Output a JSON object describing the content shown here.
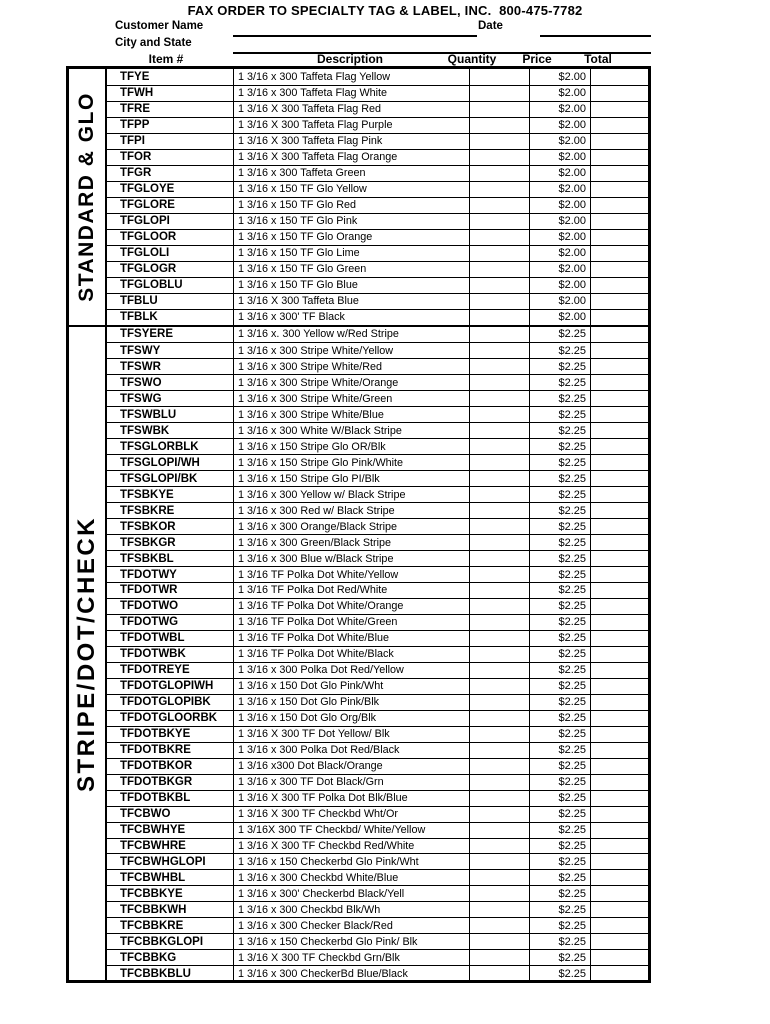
{
  "colors": {
    "ink": "#000000",
    "paper": "#ffffff"
  },
  "header": {
    "title": "FAX ORDER TO SPECIALTY TAG & LABEL, INC.  800-475-7782",
    "customer_name_label": "Customer Name",
    "city_state_label": "City and State",
    "date_label": "Date",
    "customer_name_value": "",
    "city_state_value": "",
    "date_value": "",
    "columns": {
      "item": "Item #",
      "description": "Description",
      "quantity": "Quantity",
      "price": "Price",
      "total": "Total"
    }
  },
  "sections": [
    {
      "label": "STANDARD & GLO",
      "rows": [
        {
          "item": "TFYE",
          "desc": "1 3/16 x 300 Taffeta Flag Yellow",
          "qty": "",
          "price": "$2.00",
          "total": ""
        },
        {
          "item": "TFWH",
          "desc": "1 3/16 x 300 Taffeta Flag White",
          "qty": "",
          "price": "$2.00",
          "total": ""
        },
        {
          "item": "TFRE",
          "desc": "1 3/16 X 300 Taffeta Flag Red",
          "qty": "",
          "price": "$2.00",
          "total": ""
        },
        {
          "item": "TFPP",
          "desc": "1 3/16 X 300 Taffeta Flag Purple",
          "qty": "",
          "price": "$2.00",
          "total": ""
        },
        {
          "item": "TFPI",
          "desc": "1 3/16 X 300 Taffeta Flag Pink",
          "qty": "",
          "price": "$2.00",
          "total": ""
        },
        {
          "item": "TFOR",
          "desc": "1 3/16 X 300 Taffeta Flag Orange",
          "qty": "",
          "price": "$2.00",
          "total": ""
        },
        {
          "item": "TFGR",
          "desc": "1 3/16 x 300 Taffeta Green",
          "qty": "",
          "price": "$2.00",
          "total": ""
        },
        {
          "item": "TFGLOYE",
          "desc": "1 3/16 x 150 TF Glo Yellow",
          "qty": "",
          "price": "$2.00",
          "total": ""
        },
        {
          "item": "TFGLORE",
          "desc": "1 3/16 x 150 TF Glo Red",
          "qty": "",
          "price": "$2.00",
          "total": ""
        },
        {
          "item": "TFGLOPI",
          "desc": "1 3/16 x 150 TF Glo Pink",
          "qty": "",
          "price": "$2.00",
          "total": ""
        },
        {
          "item": "TFGLOOR",
          "desc": "1 3/16 x 150 TF Glo Orange",
          "qty": "",
          "price": "$2.00",
          "total": ""
        },
        {
          "item": "TFGLOLI",
          "desc": "1 3/16 x 150 TF Glo Lime",
          "qty": "",
          "price": "$2.00",
          "total": ""
        },
        {
          "item": "TFGLOGR",
          "desc": "1 3/16 x 150 TF Glo Green",
          "qty": "",
          "price": "$2.00",
          "total": ""
        },
        {
          "item": "TFGLOBLU",
          "desc": "1 3/16 x 150 TF Glo Blue",
          "qty": "",
          "price": "$2.00",
          "total": ""
        },
        {
          "item": "TFBLU",
          "desc": "1 3/16 X 300 Taffeta Blue",
          "qty": "",
          "price": "$2.00",
          "total": ""
        },
        {
          "item": "TFBLK",
          "desc": "1 3/16 x 300' TF Black",
          "qty": "",
          "price": "$2.00",
          "total": ""
        }
      ]
    },
    {
      "label": "STRIPE/DOT/CHECK",
      "rows": [
        {
          "item": "TFSYERE",
          "desc": "1 3/16 x. 300 Yellow w/Red Stripe",
          "qty": "",
          "price": "$2.25",
          "total": ""
        },
        {
          "item": "TFSWY",
          "desc": "1 3/16 x 300 Stripe White/Yellow",
          "qty": "",
          "price": "$2.25",
          "total": ""
        },
        {
          "item": "TFSWR",
          "desc": "1 3/16 x 300 Stripe White/Red",
          "qty": "",
          "price": "$2.25",
          "total": ""
        },
        {
          "item": "TFSWO",
          "desc": "1 3/16 x 300 Stripe White/Orange",
          "qty": "",
          "price": "$2.25",
          "total": ""
        },
        {
          "item": "TFSWG",
          "desc": "1 3/16 x 300 Stripe White/Green",
          "qty": "",
          "price": "$2.25",
          "total": ""
        },
        {
          "item": "TFSWBLU",
          "desc": "1 3/16 x 300 Stripe White/Blue",
          "qty": "",
          "price": "$2.25",
          "total": ""
        },
        {
          "item": "TFSWBK",
          "desc": "1 3/16 x 300 White W/Black Stripe",
          "qty": "",
          "price": "$2.25",
          "total": ""
        },
        {
          "item": "TFSGLORBLK",
          "desc": "1 3/16 x 150 Stripe Glo OR/Blk",
          "qty": "",
          "price": "$2.25",
          "total": ""
        },
        {
          "item": "TFSGLOPI/WH",
          "desc": "1 3/16 x 150 Stripe Glo Pink/White",
          "qty": "",
          "price": "$2.25",
          "total": ""
        },
        {
          "item": "TFSGLOPI/BK",
          "desc": "1 3/16 x 150 Stripe Glo PI/Blk",
          "qty": "",
          "price": "$2.25",
          "total": ""
        },
        {
          "item": "TFSBKYE",
          "desc": "1 3/16 x 300 Yellow w/ Black Stripe",
          "qty": "",
          "price": "$2.25",
          "total": ""
        },
        {
          "item": "TFSBKRE",
          "desc": "1 3/16 x 300 Red w/ Black Stripe",
          "qty": "",
          "price": "$2.25",
          "total": ""
        },
        {
          "item": "TFSBKOR",
          "desc": "1 3/16 x 300 Orange/Black Stripe",
          "qty": "",
          "price": "$2.25",
          "total": ""
        },
        {
          "item": "TFSBKGR",
          "desc": "1 3/16 x 300 Green/Black Stripe",
          "qty": "",
          "price": "$2.25",
          "total": ""
        },
        {
          "item": "TFSBKBL",
          "desc": "1 3/16 x 300 Blue w/Black Stripe",
          "qty": "",
          "price": "$2.25",
          "total": ""
        },
        {
          "item": "TFDOTWY",
          "desc": "1 3/16 TF Polka Dot White/Yellow",
          "qty": "",
          "price": "$2.25",
          "total": ""
        },
        {
          "item": "TFDOTWR",
          "desc": "1 3/16 TF Polka Dot Red/White",
          "qty": "",
          "price": "$2.25",
          "total": ""
        },
        {
          "item": "TFDOTWO",
          "desc": "1 3/16 TF Polka Dot White/Orange",
          "qty": "",
          "price": "$2.25",
          "total": ""
        },
        {
          "item": "TFDOTWG",
          "desc": "1 3/16 TF Polka Dot White/Green",
          "qty": "",
          "price": "$2.25",
          "total": ""
        },
        {
          "item": "TFDOTWBL",
          "desc": "1 3/16 TF Polka Dot White/Blue",
          "qty": "",
          "price": "$2.25",
          "total": ""
        },
        {
          "item": "TFDOTWBK",
          "desc": "1 3/16 TF Polka Dot White/Black",
          "qty": "",
          "price": "$2.25",
          "total": ""
        },
        {
          "item": "TFDOTREYE",
          "desc": "1 3/16 x 300 Polka Dot Red/Yellow",
          "qty": "",
          "price": "$2.25",
          "total": ""
        },
        {
          "item": "TFDOTGLOPIWH",
          "desc": "1 3/16 x 150 Dot Glo Pink/Wht",
          "qty": "",
          "price": "$2.25",
          "total": ""
        },
        {
          "item": "TFDOTGLOPIBK",
          "desc": "1 3/16 x 150 Dot Glo Pink/Blk",
          "qty": "",
          "price": "$2.25",
          "total": ""
        },
        {
          "item": "TFDOTGLOORBK",
          "desc": "1 3/16 x 150 Dot Glo Org/Blk",
          "qty": "",
          "price": "$2.25",
          "total": ""
        },
        {
          "item": "TFDOTBKYE",
          "desc": "1 3/16 X 300 TF Dot Yellow/ Blk",
          "qty": "",
          "price": "$2.25",
          "total": ""
        },
        {
          "item": "TFDOTBKRE",
          "desc": "1 3/16 x 300 Polka Dot Red/Black",
          "qty": "",
          "price": "$2.25",
          "total": ""
        },
        {
          "item": "TFDOTBKOR",
          "desc": "1 3/16 x300 Dot Black/Orange",
          "qty": "",
          "price": "$2.25",
          "total": ""
        },
        {
          "item": "TFDOTBKGR",
          "desc": "1 3/16 x 300 TF Dot Black/Grn",
          "qty": "",
          "price": "$2.25",
          "total": ""
        },
        {
          "item": "TFDOTBKBL",
          "desc": "1 3/16 X 300 TF Polka Dot Blk/Blue",
          "qty": "",
          "price": "$2.25",
          "total": ""
        },
        {
          "item": "TFCBWO",
          "desc": "1 3/16 X 300 TF Checkbd Wht/Or",
          "qty": "",
          "price": "$2.25",
          "total": ""
        },
        {
          "item": "TFCBWHYE",
          "desc": "1 3/16X 300 TF Checkbd/ White/Yellow",
          "qty": "",
          "price": "$2.25",
          "total": ""
        },
        {
          "item": "TFCBWHRE",
          "desc": "1 3/16 X 300 TF Checkbd Red/White",
          "qty": "",
          "price": "$2.25",
          "total": ""
        },
        {
          "item": "TFCBWHGLOPI",
          "desc": "1 3/16 x 150 Checkerbd Glo Pink/Wht",
          "qty": "",
          "price": "$2.25",
          "total": ""
        },
        {
          "item": "TFCBWHBL",
          "desc": "1 3/16 x 300 Checkbd White/Blue",
          "qty": "",
          "price": "$2.25",
          "total": ""
        },
        {
          "item": "TFCBBKYE",
          "desc": "1 3/16 x 300' Checkerbd Black/Yell",
          "qty": "",
          "price": "$2.25",
          "total": ""
        },
        {
          "item": "TFCBBKWH",
          "desc": "1 3/16 x 300 Checkbd Blk/Wh",
          "qty": "",
          "price": "$2.25",
          "total": ""
        },
        {
          "item": "TFCBBKRE",
          "desc": "1 3/16 x 300 Checker Black/Red",
          "qty": "",
          "price": "$2.25",
          "total": ""
        },
        {
          "item": "TFCBBKGLOPI",
          "desc": "1 3/16 x 150 Checkerbd Glo Pink/ Blk",
          "qty": "",
          "price": "$2.25",
          "total": ""
        },
        {
          "item": "TFCBBKG",
          "desc": "1 3/16 X 300 TF Checkbd Grn/Blk",
          "qty": "",
          "price": "$2.25",
          "total": ""
        },
        {
          "item": "TFCBBKBLU",
          "desc": "1 3/16 x 300 CheckerBd Blue/Black",
          "qty": "",
          "price": "$2.25",
          "total": ""
        }
      ]
    }
  ]
}
